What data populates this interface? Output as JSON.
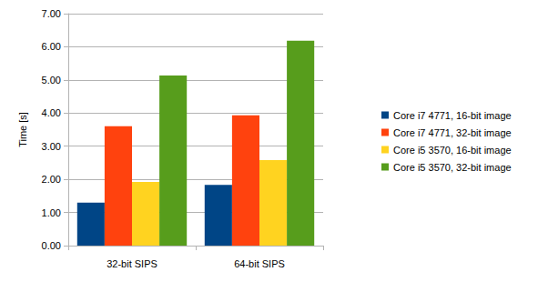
{
  "chart_data": {
    "type": "bar",
    "categories": [
      "32-bit SIPS",
      "64-bit SIPS"
    ],
    "series": [
      {
        "name": "Core i7 4771, 16-bit image",
        "color": "#004586",
        "values": [
          1.3,
          1.83
        ]
      },
      {
        "name": "Core i7 4771, 32-bit image",
        "color": "#ff420e",
        "values": [
          3.6,
          3.93
        ]
      },
      {
        "name": "Core i5 3570, 16-bit image",
        "color": "#ffd320",
        "values": [
          1.92,
          2.58
        ]
      },
      {
        "name": "Core i5 3570, 32-bit image",
        "color": "#579d1c",
        "values": [
          5.13,
          6.18
        ]
      }
    ],
    "y_label": "Time [s]",
    "ylim": [
      0,
      7
    ],
    "yticks": [
      {
        "value": 0,
        "label": "0.00"
      },
      {
        "value": 1,
        "label": "1.00"
      },
      {
        "value": 2,
        "label": "2.00"
      },
      {
        "value": 3,
        "label": "3.00"
      },
      {
        "value": 4,
        "label": "4.00"
      },
      {
        "value": 5,
        "label": "5.00"
      },
      {
        "value": 6,
        "label": "6.00"
      },
      {
        "value": 7,
        "label": "7.00"
      }
    ],
    "grid": true,
    "legend": "right"
  }
}
